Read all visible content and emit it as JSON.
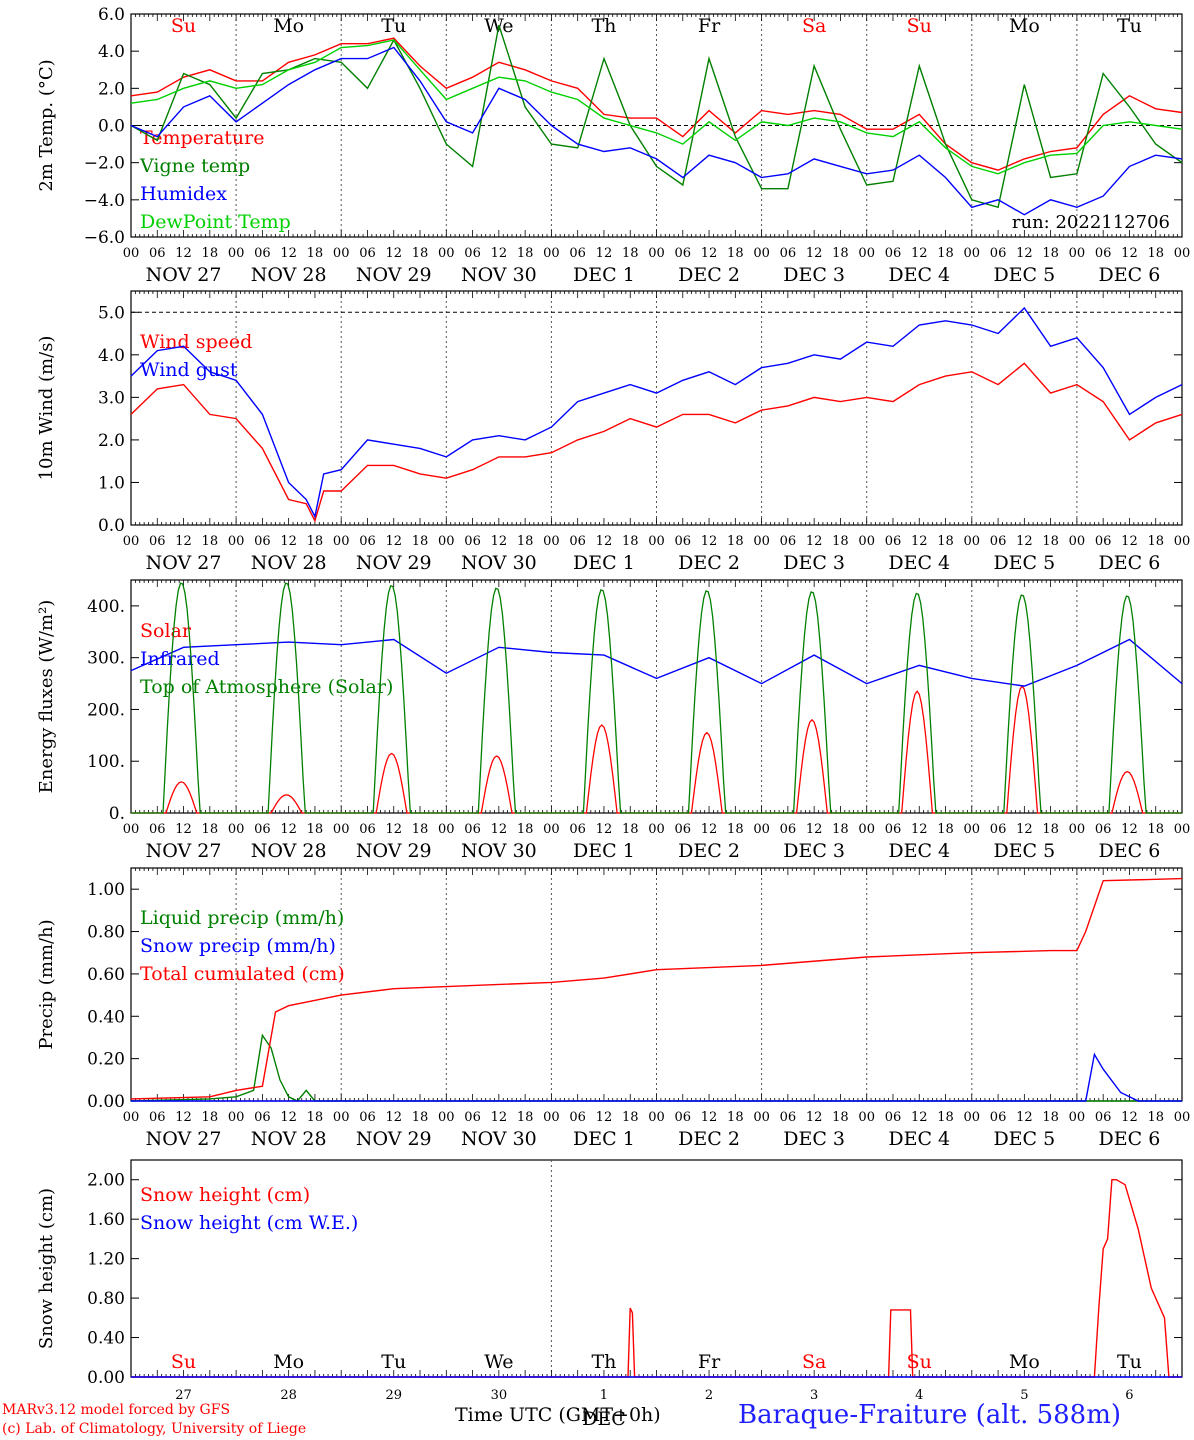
{
  "colors": {
    "red": "#ff0000",
    "green": "#008000",
    "blue": "#0000ff",
    "lime": "#00d000",
    "axis": "#000000"
  },
  "weekdays": [
    "Su",
    "Mo",
    "Tu",
    "We",
    "Th",
    "Fr",
    "Sa",
    "Su",
    "Mo",
    "Tu"
  ],
  "weekend_days": [
    "Su",
    "Sa"
  ],
  "date_labels": [
    "NOV 27",
    "NOV 28",
    "NOV 29",
    "NOV 30",
    "DEC  1",
    "DEC  2",
    "DEC  3",
    "DEC  4",
    "DEC  5",
    "DEC  6"
  ],
  "hour_labels": [
    "00",
    "06",
    "12",
    "18"
  ],
  "day_numbers": [
    "27",
    "28",
    "29",
    "30",
    "1",
    "2",
    "3",
    "4",
    "5",
    "6"
  ],
  "footer": {
    "credit_line_1": "MARv3.12 model forced by GFS",
    "credit_line_2": "(c) Lab. of Climatology, University of Liege",
    "time_label": "Time UTC (GMT+0h)",
    "month_label": "DEC",
    "station": "Baraque-Fraiture (alt. 588m)"
  },
  "chart_data": [
    {
      "type": "line",
      "x_unit": "hours since 00 UTC NOV 27",
      "xlim": [
        0,
        240
      ],
      "ylabel": "2m Temp. (°C)",
      "ylim": [
        -6,
        6
      ],
      "yticks": [
        "−6.0",
        "−4.0",
        "−2.0",
        "0.0",
        "2.0",
        "4.0",
        "6.0"
      ],
      "ytick_values": [
        -6,
        -4,
        -2,
        0,
        2,
        4,
        6
      ],
      "reference_line": 0,
      "annotation": "run: 2022112706",
      "series": [
        {
          "name": "Temperature",
          "color": "#ff0000",
          "x": [
            0,
            6,
            12,
            18,
            24,
            30,
            36,
            42,
            48,
            54,
            60,
            66,
            72,
            78,
            84,
            90,
            96,
            102,
            108,
            114,
            120,
            126,
            132,
            138,
            144,
            150,
            156,
            162,
            168,
            174,
            180,
            186,
            192,
            198,
            204,
            210,
            216,
            222,
            228,
            234,
            240
          ],
          "y": [
            1.6,
            1.8,
            2.6,
            3.0,
            2.4,
            2.4,
            3.4,
            3.8,
            4.4,
            4.4,
            4.7,
            3.2,
            2.0,
            2.6,
            3.4,
            3.0,
            2.4,
            2.0,
            0.6,
            0.4,
            0.4,
            -0.6,
            0.8,
            -0.4,
            0.8,
            0.6,
            0.8,
            0.6,
            -0.2,
            -0.2,
            0.6,
            -1.0,
            -2.0,
            -2.4,
            -1.8,
            -1.4,
            -1.2,
            0.6,
            1.6,
            0.9,
            0.7
          ]
        },
        {
          "name": "Vigne temp",
          "color": "#008000",
          "x": [
            0,
            6,
            12,
            18,
            24,
            30,
            36,
            42,
            48,
            54,
            60,
            66,
            72,
            78,
            84,
            90,
            96,
            102,
            108,
            114,
            120,
            126,
            132,
            138,
            144,
            150,
            156,
            162,
            168,
            174,
            180,
            186,
            192,
            198,
            204,
            210,
            216,
            222,
            228,
            234,
            240
          ],
          "y": [
            0.0,
            -0.8,
            2.8,
            2.2,
            0.4,
            2.8,
            3.0,
            3.6,
            3.4,
            2.0,
            4.6,
            2.0,
            -1.0,
            -2.2,
            5.4,
            1.0,
            -1.0,
            -1.2,
            3.6,
            0.0,
            -2.2,
            -3.2,
            3.6,
            -0.6,
            -3.4,
            -3.4,
            3.2,
            -0.2,
            -3.2,
            -3.0,
            3.2,
            -1.0,
            -4.0,
            -4.4,
            2.2,
            -2.8,
            -2.6,
            2.8,
            1.0,
            -1.0,
            -2.0
          ]
        },
        {
          "name": "Humidex",
          "color": "#0000ff",
          "x": [
            0,
            6,
            12,
            18,
            24,
            30,
            36,
            42,
            48,
            54,
            60,
            66,
            72,
            78,
            84,
            90,
            96,
            102,
            108,
            114,
            120,
            126,
            132,
            138,
            144,
            150,
            156,
            162,
            168,
            174,
            180,
            186,
            192,
            198,
            204,
            210,
            216,
            222,
            228,
            234,
            240
          ],
          "y": [
            0.0,
            -0.6,
            1.0,
            1.6,
            0.2,
            1.2,
            2.2,
            3.0,
            3.6,
            3.6,
            4.2,
            2.4,
            0.2,
            -0.4,
            2.0,
            1.4,
            0.0,
            -1.0,
            -1.4,
            -1.2,
            -1.8,
            -2.8,
            -1.6,
            -2.0,
            -2.8,
            -2.6,
            -1.8,
            -2.2,
            -2.6,
            -2.4,
            -1.6,
            -2.8,
            -4.4,
            -4.0,
            -4.8,
            -4.0,
            -4.4,
            -3.8,
            -2.2,
            -1.6,
            -1.8
          ]
        },
        {
          "name": "DewPoint Temp",
          "color": "#00d000",
          "x": [
            0,
            6,
            12,
            18,
            24,
            30,
            36,
            42,
            48,
            54,
            60,
            66,
            72,
            78,
            84,
            90,
            96,
            102,
            108,
            114,
            120,
            126,
            132,
            138,
            144,
            150,
            156,
            162,
            168,
            174,
            180,
            186,
            192,
            198,
            204,
            210,
            216,
            222,
            228,
            234,
            240
          ],
          "y": [
            1.2,
            1.4,
            2.0,
            2.4,
            2.0,
            2.2,
            3.0,
            3.4,
            4.2,
            4.3,
            4.6,
            3.0,
            1.4,
            2.0,
            2.6,
            2.4,
            1.8,
            1.4,
            0.4,
            0.0,
            -0.4,
            -1.0,
            0.2,
            -0.8,
            0.2,
            0.0,
            0.4,
            0.2,
            -0.4,
            -0.6,
            0.2,
            -1.2,
            -2.2,
            -2.6,
            -2.0,
            -1.6,
            -1.5,
            0.0,
            0.2,
            0.0,
            -0.2
          ]
        }
      ]
    },
    {
      "type": "line",
      "x_unit": "hours since 00 UTC NOV 27",
      "xlim": [
        0,
        240
      ],
      "ylabel": "10m Wind (m/s)",
      "ylim": [
        0,
        5.5
      ],
      "yticks": [
        "0.0",
        "1.0",
        "2.0",
        "3.0",
        "4.0",
        "5.0"
      ],
      "ytick_values": [
        0,
        1,
        2,
        3,
        4,
        5
      ],
      "reference_line": 5,
      "series": [
        {
          "name": "Wind speed",
          "color": "#ff0000",
          "x": [
            0,
            6,
            12,
            18,
            24,
            30,
            36,
            40,
            42,
            44,
            48,
            54,
            60,
            66,
            72,
            78,
            84,
            90,
            96,
            102,
            108,
            114,
            120,
            126,
            132,
            138,
            144,
            150,
            156,
            162,
            168,
            174,
            180,
            186,
            192,
            198,
            204,
            210,
            216,
            222,
            228,
            234,
            240
          ],
          "y": [
            2.6,
            3.2,
            3.3,
            2.6,
            2.5,
            1.8,
            0.6,
            0.5,
            0.1,
            0.8,
            0.8,
            1.4,
            1.4,
            1.2,
            1.1,
            1.3,
            1.6,
            1.6,
            1.7,
            2.0,
            2.2,
            2.5,
            2.3,
            2.6,
            2.6,
            2.4,
            2.7,
            2.8,
            3.0,
            2.9,
            3.0,
            2.9,
            3.3,
            3.5,
            3.6,
            3.3,
            3.8,
            3.1,
            3.3,
            2.9,
            2.0,
            2.4,
            2.6
          ]
        },
        {
          "name": "Wind gust",
          "color": "#0000ff",
          "x": [
            0,
            6,
            12,
            18,
            24,
            30,
            36,
            40,
            42,
            44,
            48,
            54,
            60,
            66,
            72,
            78,
            84,
            90,
            96,
            102,
            108,
            114,
            120,
            126,
            132,
            138,
            144,
            150,
            156,
            162,
            168,
            174,
            180,
            186,
            192,
            198,
            204,
            210,
            216,
            222,
            228,
            234,
            240
          ],
          "y": [
            3.5,
            4.1,
            4.2,
            3.6,
            3.4,
            2.6,
            1.0,
            0.6,
            0.2,
            1.2,
            1.3,
            2.0,
            1.9,
            1.8,
            1.6,
            2.0,
            2.1,
            2.0,
            2.3,
            2.9,
            3.1,
            3.3,
            3.1,
            3.4,
            3.6,
            3.3,
            3.7,
            3.8,
            4.0,
            3.9,
            4.3,
            4.2,
            4.7,
            4.8,
            4.7,
            4.5,
            5.1,
            4.2,
            4.4,
            3.7,
            2.6,
            3.0,
            3.3
          ]
        }
      ]
    },
    {
      "type": "line",
      "x_unit": "hours since 00 UTC NOV 27",
      "xlim": [
        0,
        240
      ],
      "ylabel": "Energy fluxes (W/m²)",
      "ylim": [
        0,
        450
      ],
      "yticks": [
        "0.",
        "100.",
        "200.",
        "300.",
        "400."
      ],
      "ytick_values": [
        0,
        100,
        200,
        300,
        400
      ],
      "series": [
        {
          "name": "Solar",
          "color": "#ff0000",
          "peaks": [
            60,
            35,
            115,
            110,
            170,
            155,
            180,
            235,
            245,
            80
          ]
        },
        {
          "name": "Infrared",
          "color": "#0000ff",
          "x": [
            0,
            12,
            24,
            36,
            48,
            60,
            72,
            84,
            96,
            108,
            120,
            132,
            144,
            156,
            168,
            180,
            192,
            204,
            216,
            228,
            240
          ],
          "y": [
            275,
            320,
            325,
            330,
            325,
            335,
            270,
            320,
            310,
            305,
            260,
            300,
            250,
            305,
            250,
            285,
            260,
            245,
            285,
            335,
            250
          ]
        },
        {
          "name": "Top of Atmosphere (Solar)",
          "color": "#008000",
          "peaks": [
            445,
            445,
            440,
            435,
            432,
            430,
            428,
            425,
            422,
            420
          ]
        }
      ]
    },
    {
      "type": "line",
      "x_unit": "hours since 00 UTC NOV 27",
      "xlim": [
        0,
        240
      ],
      "ylabel": "Precip (mm/h)",
      "ylim": [
        0,
        1.1
      ],
      "yticks": [
        "0.00",
        "0.20",
        "0.40",
        "0.60",
        "0.80",
        "1.00"
      ],
      "ytick_values": [
        0,
        0.2,
        0.4,
        0.6,
        0.8,
        1.0
      ],
      "series": [
        {
          "name": "Liquid precip (mm/h)",
          "color": "#008000",
          "x": [
            0,
            18,
            24,
            28,
            30,
            32,
            34,
            36,
            38,
            40,
            42,
            48,
            240
          ],
          "y": [
            0,
            0.01,
            0.02,
            0.05,
            0.31,
            0.25,
            0.1,
            0.02,
            0,
            0.05,
            0,
            0,
            0
          ]
        },
        {
          "name": "Snow precip (mm/h)",
          "color": "#0000ff",
          "x": [
            0,
            218,
            220,
            222,
            226,
            230,
            240
          ],
          "y": [
            0,
            0,
            0.22,
            0.15,
            0.04,
            0,
            0
          ]
        },
        {
          "name": "Total cumulated (cm)",
          "color": "#ff0000",
          "x": [
            0,
            18,
            24,
            30,
            33,
            36,
            48,
            60,
            72,
            96,
            108,
            120,
            144,
            168,
            192,
            210,
            216,
            218,
            222,
            240
          ],
          "y": [
            0.01,
            0.02,
            0.05,
            0.07,
            0.42,
            0.45,
            0.5,
            0.53,
            0.54,
            0.56,
            0.58,
            0.62,
            0.64,
            0.68,
            0.7,
            0.71,
            0.71,
            0.8,
            1.04,
            1.05
          ]
        }
      ]
    },
    {
      "type": "line",
      "x_unit": "hours since 00 UTC NOV 27",
      "xlim": [
        0,
        240
      ],
      "ylabel": "Snow height (cm)",
      "ylim": [
        0,
        2.2
      ],
      "yticks": [
        "0.00",
        "0.40",
        "0.80",
        "1.20",
        "1.60",
        "2.00"
      ],
      "ytick_values": [
        0,
        0.4,
        0.8,
        1.2,
        1.6,
        2.0
      ],
      "series": [
        {
          "name": "Snow height (cm)",
          "color": "#ff0000",
          "x": [
            0,
            113.5,
            114,
            114.5,
            115,
            173,
            173.5,
            178,
            178.5,
            220,
            221,
            222,
            223,
            224,
            225,
            227,
            230,
            233,
            236,
            237,
            240
          ],
          "y": [
            0,
            0,
            0.7,
            0.65,
            0,
            0,
            0.68,
            0.68,
            0,
            0,
            0.7,
            1.3,
            1.4,
            2.0,
            2.0,
            1.95,
            1.5,
            0.9,
            0.6,
            0,
            0
          ]
        },
        {
          "name": "Snow height (cm W.E.)",
          "color": "#0000ff",
          "x": [
            0,
            240
          ],
          "y": [
            0,
            0
          ]
        }
      ]
    }
  ]
}
